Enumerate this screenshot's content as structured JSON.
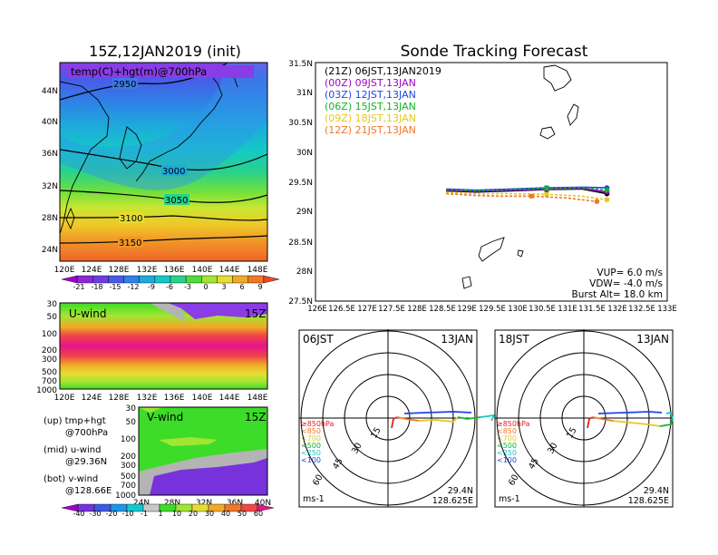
{
  "left": {
    "title": "15Z,12JAN2019 (init)",
    "map_label": "temp(C)+hgt(m)@700hPa",
    "lat_ticks": [
      "44N",
      "40N",
      "36N",
      "32N",
      "28N",
      "24N"
    ],
    "lon_ticks": [
      "120E",
      "124E",
      "128E",
      "132E",
      "136E",
      "140E",
      "144E",
      "148E"
    ],
    "contour_labels": [
      "2950",
      "3000",
      "3050",
      "3100",
      "3150"
    ],
    "colorbar1_ticks": [
      "-21",
      "-18",
      "-15",
      "-12",
      "-9",
      "-6",
      "-3",
      "0",
      "3",
      "6",
      "9"
    ],
    "colorbar1_colors": [
      "#a000c8",
      "#8c28d8",
      "#6e3ce6",
      "#4a5ae8",
      "#2e82e8",
      "#1eaadc",
      "#14c8c8",
      "#28d28c",
      "#50dc3c",
      "#a0e632",
      "#e6dc32",
      "#f0aa28",
      "#f07828",
      "#ec4628"
    ],
    "uwind_label": "U-wind",
    "uwind_time": "15Z",
    "p_ticks": [
      "30",
      "50",
      "100",
      "200",
      "300",
      "500",
      "700",
      "1000"
    ],
    "vwind_label": "V-wind",
    "vwind_time": "15Z",
    "vwind_x_ticks": [
      "24N",
      "28N",
      "32N",
      "36N",
      "40N"
    ],
    "legend": {
      "up1": "(up)  tmp+hgt",
      "up2": "@700hPa",
      "mid1": "(mid)  u-wind",
      "mid2": "@29.36N",
      "bot1": "(bot)  v-wind",
      "bot2": "@128.66E"
    },
    "colorbar2_ticks": [
      "-40",
      "-30",
      "-20",
      "-10",
      "-1",
      "1",
      "10",
      "20",
      "30",
      "40",
      "50",
      "60"
    ],
    "colorbar2_colors": [
      "#a000c8",
      "#7832dc",
      "#3c5ae6",
      "#1e96e6",
      "#14c8d2",
      "#c8c8c8",
      "#3cdc28",
      "#a0e632",
      "#e6dc32",
      "#f0aa28",
      "#f07828",
      "#f04646",
      "#e6148c"
    ]
  },
  "right": {
    "title": "Sonde Tracking Forecast",
    "legend_lines": [
      {
        "text": "(21Z)  06JST,13JAN2019",
        "color": "#000000"
      },
      {
        "text": "(00Z)  09JST,13JAN",
        "color": "#a000c8"
      },
      {
        "text": "(03Z)  12JST,13JAN",
        "color": "#1e46e6"
      },
      {
        "text": "(06Z)  15JST,13JAN",
        "color": "#14b428"
      },
      {
        "text": "(09Z)  18JST,13JAN",
        "color": "#e6c81e"
      },
      {
        "text": "(12Z)  21JST,13JAN",
        "color": "#f07828"
      }
    ],
    "lat_ticks": [
      "31.5N",
      "31N",
      "30.5N",
      "30N",
      "29.5N",
      "29N",
      "28.5N",
      "28N",
      "27.5N"
    ],
    "lon_ticks": [
      "126E",
      "126.5E",
      "127E",
      "127.5E",
      "128E",
      "128.5E",
      "129E",
      "129.5E",
      "130E",
      "130.5E",
      "131E",
      "131.5E",
      "132E",
      "132.5E",
      "133E"
    ],
    "info": {
      "vup": "VUP=  6.0  m/s",
      "vdw": "VDW=  -4.0  m/s",
      "burst": "Burst Alt=  18.0  km"
    }
  },
  "chart_data": {
    "type": "line",
    "title": "Sonde Tracking Forecast",
    "xlim": [
      126,
      133
    ],
    "ylim": [
      27.5,
      31.5
    ],
    "series": [
      {
        "name": "(21Z)  06JST,13JAN2019",
        "color": "#000000",
        "x": [
          128.6,
          129.2,
          129.9,
          130.6,
          131.3,
          131.8
        ],
        "y": [
          29.35,
          29.33,
          29.35,
          29.37,
          29.38,
          29.3
        ]
      },
      {
        "name": "(00Z)  09JST,13JAN",
        "color": "#a000c8",
        "x": [
          128.6,
          129.2,
          129.9,
          130.6,
          131.3,
          131.8
        ],
        "y": [
          29.36,
          29.34,
          29.36,
          29.38,
          29.39,
          29.33
        ]
      },
      {
        "name": "(03Z)  12JST,13JAN",
        "color": "#1e46e6",
        "x": [
          128.6,
          129.2,
          129.9,
          130.6,
          131.3,
          131.8
        ],
        "y": [
          29.38,
          29.36,
          29.38,
          29.4,
          29.41,
          29.4
        ]
      },
      {
        "name": "(06Z)  15JST,13JAN",
        "color": "#14b428",
        "x": [
          128.6,
          129.2,
          129.9,
          130.6,
          131.3,
          131.8
        ],
        "y": [
          29.37,
          29.35,
          29.37,
          29.39,
          29.4,
          29.36
        ]
      },
      {
        "name": "(09Z)  18JST,13JAN",
        "color": "#e6c81e",
        "x": [
          128.6,
          129.2,
          129.9,
          130.6,
          131.3,
          131.8
        ],
        "y": [
          29.32,
          29.3,
          29.3,
          29.29,
          29.26,
          29.2
        ]
      },
      {
        "name": "(12Z)  21JST,13JAN",
        "color": "#f07828",
        "x": [
          128.6,
          129.2,
          129.7,
          130.3,
          131.0,
          131.6
        ],
        "y": [
          29.3,
          29.27,
          29.26,
          29.26,
          29.23,
          29.17
        ]
      }
    ]
  },
  "hodographs": [
    {
      "time": "06JST",
      "date": "13JAN",
      "lat": "29.4N",
      "lon": "128.625E",
      "unit": "ms-1",
      "ring_labels": [
        "15",
        "30",
        "45",
        "60"
      ]
    },
    {
      "time": "18JST",
      "date": "13JAN",
      "lat": "29.4N",
      "lon": "128.625E",
      "unit": "ms-1",
      "ring_labels": [
        "15",
        "30",
        "45",
        "60"
      ]
    }
  ],
  "hodo_levels": [
    {
      "text": "≥850hPa",
      "color": "#e61e1e"
    },
    {
      "text": "<850",
      "color": "#f07828"
    },
    {
      "text": "<700",
      "color": "#e6c81e"
    },
    {
      "text": "<500",
      "color": "#14b428"
    },
    {
      "text": "<250",
      "color": "#14c8c8"
    },
    {
      "text": "<100",
      "color": "#1e46e6"
    }
  ]
}
